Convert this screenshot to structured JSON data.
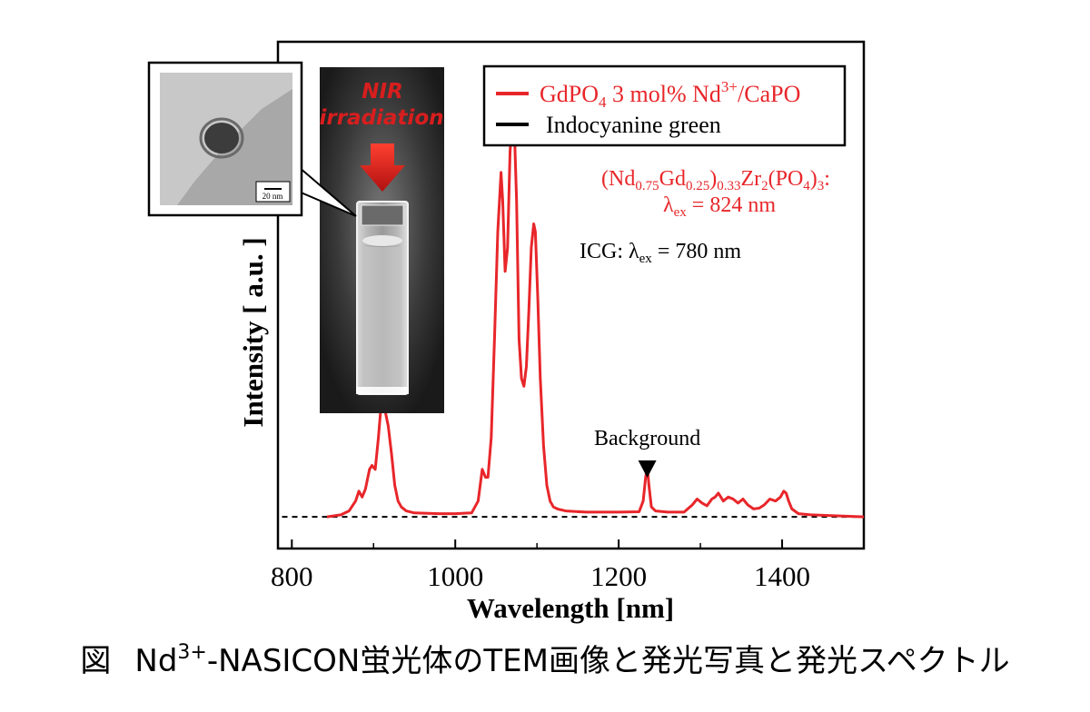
{
  "chart_data": {
    "type": "line",
    "xlabel": "Wavelength [nm]",
    "ylabel": "Intensity [ a.u. ]",
    "xlim": [
      783,
      1500
    ],
    "ylim": [
      -0.08,
      1.2
    ],
    "xticks": [
      800,
      1000,
      1200,
      1400
    ],
    "grid": false,
    "legend_position": "top-right",
    "series": [
      {
        "name": "GdPO4 3 mol% Nd3+/CaPO",
        "color": "#e8262a",
        "x": [
          843,
          860,
          870,
          878,
          882,
          886,
          890,
          895,
          898,
          902,
          906,
          910,
          914,
          918,
          922,
          926,
          930,
          934,
          940,
          950,
          980,
          1000,
          1020,
          1028,
          1033,
          1037,
          1040,
          1044,
          1048,
          1052,
          1056,
          1058,
          1061,
          1064,
          1067,
          1070,
          1072,
          1075,
          1078,
          1081,
          1084,
          1087,
          1090,
          1093,
          1096,
          1098,
          1101,
          1104,
          1108,
          1112,
          1116,
          1120,
          1125,
          1135,
          1160,
          1200,
          1225,
          1230,
          1233,
          1235,
          1237,
          1240,
          1245,
          1260,
          1280,
          1290,
          1296,
          1302,
          1308,
          1314,
          1318,
          1322,
          1328,
          1334,
          1340,
          1346,
          1352,
          1358,
          1365,
          1372,
          1378,
          1385,
          1392,
          1398,
          1402,
          1405,
          1408,
          1412,
          1420,
          1435,
          1460,
          1500
        ],
        "y": [
          0.0,
          0.005,
          0.015,
          0.04,
          0.065,
          0.05,
          0.07,
          0.12,
          0.13,
          0.12,
          0.2,
          0.3,
          0.27,
          0.23,
          0.16,
          0.08,
          0.04,
          0.025,
          0.015,
          0.01,
          0.008,
          0.008,
          0.01,
          0.04,
          0.12,
          0.1,
          0.1,
          0.2,
          0.45,
          0.72,
          0.87,
          0.8,
          0.62,
          0.68,
          0.92,
          1.02,
          1.0,
          0.8,
          0.45,
          0.35,
          0.33,
          0.38,
          0.52,
          0.68,
          0.74,
          0.72,
          0.55,
          0.35,
          0.18,
          0.08,
          0.04,
          0.025,
          0.02,
          0.015,
          0.012,
          0.012,
          0.013,
          0.04,
          0.1,
          0.125,
          0.08,
          0.025,
          0.015,
          0.012,
          0.012,
          0.03,
          0.045,
          0.035,
          0.028,
          0.045,
          0.05,
          0.06,
          0.04,
          0.05,
          0.045,
          0.035,
          0.045,
          0.03,
          0.02,
          0.022,
          0.03,
          0.045,
          0.04,
          0.05,
          0.065,
          0.06,
          0.04,
          0.02,
          0.008,
          0.005,
          0.003,
          0.0
        ]
      },
      {
        "name": "Indocyanine green",
        "color": "#000000",
        "x": [
          788,
          1500
        ],
        "y": [
          0.0,
          0.0
        ]
      }
    ],
    "annotations": {
      "formula_line1": "(Nd0.75Gd0.25)0.33Zr2(PO4)3:",
      "formula_line2": "λex = 824 nm",
      "icg_text": "ICG: λex = 780 nm",
      "background_label": "Background",
      "background_x": 1235
    }
  },
  "inset": {
    "tem_scale_label": "20 nm",
    "nir_label_line1": "NIR",
    "nir_label_line2": "irradiation"
  },
  "caption": {
    "prefix": "図",
    "nd": "Nd",
    "sup": "3+",
    "rest": "-NASICON蛍光体のTEM画像と発光写真と発光スペクトル"
  }
}
